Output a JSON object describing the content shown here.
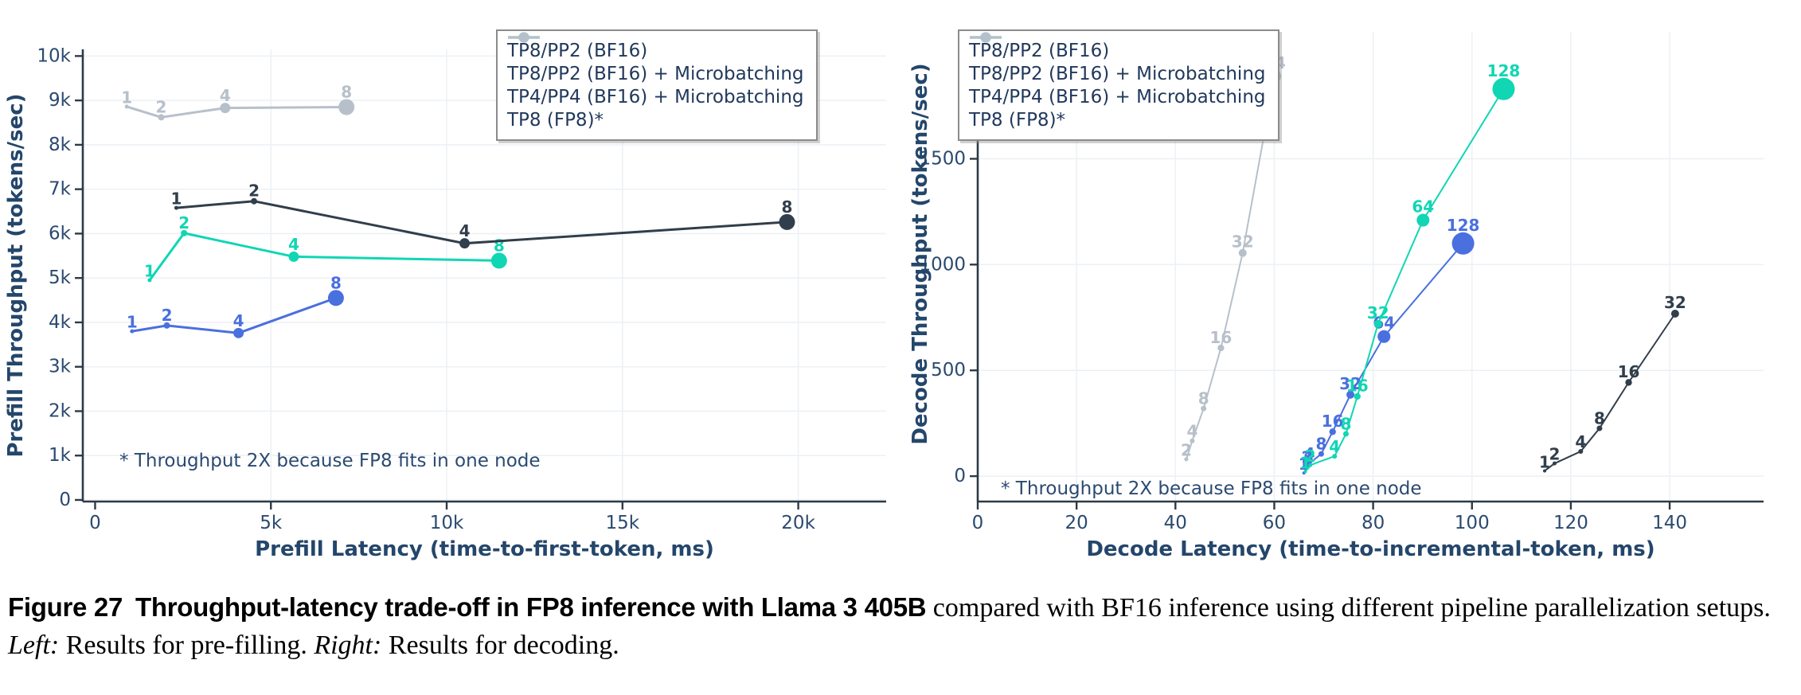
{
  "caption": {
    "figure_label": "Figure 27",
    "bold_title": "Throughput-latency trade-off in FP8 inference with Llama 3 405B",
    "body_1": " compared with BF16 inference using different pipeline parallelization setups. ",
    "left_label": "Left:",
    "left_text": " Results for pre-filling. ",
    "right_label": "Right:",
    "right_text": " Results for decoding."
  },
  "annotation": "* Throughput 2X because FP8 fits in one node",
  "colors": {
    "blue": "#4a6fdf",
    "cyan": "#10d6b4",
    "dark": "#313e4b",
    "gray": "#b7c0ca",
    "axis_text": "#2b4a70",
    "spine": "#2d3a46",
    "grid": "#edf1f5"
  },
  "chart_data": [
    {
      "type": "line",
      "title": "",
      "xlabel": "Prefill Latency (time-to-first-token, ms)",
      "ylabel": "Prefill Throughput (tokens/sec)",
      "xlim": [
        -350,
        22500
      ],
      "ylim": [
        -36,
        10150
      ],
      "grid": true,
      "legend_position": "top-left-inside",
      "annotation": "* Throughput 2X because FP8 fits in one node",
      "xticks": [
        {
          "v": 0,
          "label": "0"
        },
        {
          "v": 5000,
          "label": "5k"
        },
        {
          "v": 10000,
          "label": "10k"
        },
        {
          "v": 15000,
          "label": "15k"
        },
        {
          "v": 20000,
          "label": "20k"
        }
      ],
      "yticks": [
        {
          "v": 0,
          "label": "0"
        },
        {
          "v": 1000,
          "label": "1k"
        },
        {
          "v": 2000,
          "label": "2k"
        },
        {
          "v": 3000,
          "label": "3k"
        },
        {
          "v": 4000,
          "label": "4k"
        },
        {
          "v": 5000,
          "label": "5k"
        },
        {
          "v": 6000,
          "label": "6k"
        },
        {
          "v": 7000,
          "label": "7k"
        },
        {
          "v": 8000,
          "label": "8k"
        },
        {
          "v": 9000,
          "label": "9k"
        },
        {
          "v": 10000,
          "label": "10k"
        }
      ],
      "series": [
        {
          "name": "TP8/PP2 (BF16)",
          "color": "#4a6fdf",
          "points": [
            {
              "batch": 1,
              "x": 1050,
              "y": 3800
            },
            {
              "batch": 2,
              "x": 2040,
              "y": 3930
            },
            {
              "batch": 4,
              "x": 4080,
              "y": 3760
            },
            {
              "batch": 8,
              "x": 6850,
              "y": 4550
            }
          ]
        },
        {
          "name": "TP8/PP2 (BF16) + Microbatching",
          "color": "#10d6b4",
          "points": [
            {
              "batch": 1,
              "x": 1550,
              "y": 4950
            },
            {
              "batch": 2,
              "x": 2530,
              "y": 6010
            },
            {
              "batch": 4,
              "x": 5650,
              "y": 5480
            },
            {
              "batch": 8,
              "x": 11490,
              "y": 5390
            }
          ]
        },
        {
          "name": "TP4/PP4 (BF16) + Microbatching",
          "color": "#313e4b",
          "points": [
            {
              "batch": 1,
              "x": 2310,
              "y": 6580
            },
            {
              "batch": 2,
              "x": 4520,
              "y": 6730
            },
            {
              "batch": 4,
              "x": 10510,
              "y": 5780
            },
            {
              "batch": 8,
              "x": 19680,
              "y": 6260
            }
          ]
        },
        {
          "name": "TP8 (FP8)*",
          "color": "#b7c0ca",
          "points": [
            {
              "batch": 1,
              "x": 900,
              "y": 8860
            },
            {
              "batch": 2,
              "x": 1880,
              "y": 8620
            },
            {
              "batch": 4,
              "x": 3700,
              "y": 8830
            },
            {
              "batch": 8,
              "x": 7150,
              "y": 8850
            }
          ]
        }
      ]
    },
    {
      "type": "line",
      "title": "",
      "xlabel": "Decode Latency (time-to-incremental-token, ms)",
      "ylabel": "Decode Throughput (tokens/sec)",
      "xlim": [
        0,
        159
      ],
      "ylim": [
        -120,
        2100
      ],
      "grid": true,
      "legend_position": "top-left-inside",
      "annotation": "* Throughput 2X because FP8 fits in one node",
      "xticks": [
        {
          "v": 0,
          "label": "0"
        },
        {
          "v": 20,
          "label": "20"
        },
        {
          "v": 40,
          "label": "40"
        },
        {
          "v": 60,
          "label": "60"
        },
        {
          "v": 80,
          "label": "80"
        },
        {
          "v": 100,
          "label": "100"
        },
        {
          "v": 120,
          "label": "120"
        },
        {
          "v": 140,
          "label": "140"
        }
      ],
      "yticks": [
        {
          "v": 0,
          "label": "0"
        },
        {
          "v": 500,
          "label": "500"
        },
        {
          "v": 1000,
          "label": "1000"
        },
        {
          "v": 1500,
          "label": "1500"
        }
      ],
      "series": [
        {
          "name": "TP8/PP2 (BF16)",
          "color": "#4a6fdf",
          "points": [
            {
              "batch": 1,
              "x": 66.0,
              "y": 15
            },
            {
              "batch": 2,
              "x": 66.6,
              "y": 45
            },
            {
              "batch": 4,
              "x": 67.1,
              "y": 60
            },
            {
              "batch": 8,
              "x": 69.5,
              "y": 105
            },
            {
              "batch": 16,
              "x": 71.8,
              "y": 210
            },
            {
              "batch": 32,
              "x": 75.4,
              "y": 385
            },
            {
              "batch": 64,
              "x": 82.2,
              "y": 660
            },
            {
              "batch": 128,
              "x": 98.2,
              "y": 1100
            }
          ]
        },
        {
          "name": "TP8/PP2 (BF16) + Microbatching",
          "color": "#10d6b4",
          "points": [
            {
              "batch": 1,
              "x": 66.3,
              "y": 22
            },
            {
              "batch": 2,
              "x": 67.3,
              "y": 52
            },
            {
              "batch": 4,
              "x": 72.2,
              "y": 94
            },
            {
              "batch": 8,
              "x": 74.5,
              "y": 200
            },
            {
              "batch": 16,
              "x": 76.8,
              "y": 377
            },
            {
              "batch": 32,
              "x": 81.0,
              "y": 720
            },
            {
              "batch": 64,
              "x": 90.1,
              "y": 1210
            },
            {
              "batch": 128,
              "x": 106.4,
              "y": 1830
            }
          ]
        },
        {
          "name": "TP4/PP4 (BF16) + Microbatching",
          "color": "#313e4b",
          "points": [
            {
              "batch": 1,
              "x": 114.7,
              "y": 25
            },
            {
              "batch": 2,
              "x": 116.7,
              "y": 60
            },
            {
              "batch": 4,
              "x": 122.0,
              "y": 117
            },
            {
              "batch": 8,
              "x": 125.8,
              "y": 226
            },
            {
              "batch": 16,
              "x": 131.7,
              "y": 443
            },
            {
              "batch": 32,
              "x": 141.1,
              "y": 768
            }
          ]
        },
        {
          "name": "TP8 (FP8)*",
          "color": "#b7c0ca",
          "points": [
            {
              "batch": 2,
              "x": 42.2,
              "y": 80
            },
            {
              "batch": 4,
              "x": 43.4,
              "y": 167
            },
            {
              "batch": 8,
              "x": 45.7,
              "y": 320
            },
            {
              "batch": 16,
              "x": 49.2,
              "y": 606
            },
            {
              "batch": 32,
              "x": 53.6,
              "y": 1055
            },
            {
              "batch": 64,
              "x": 60.1,
              "y": 1890
            }
          ]
        }
      ]
    }
  ]
}
